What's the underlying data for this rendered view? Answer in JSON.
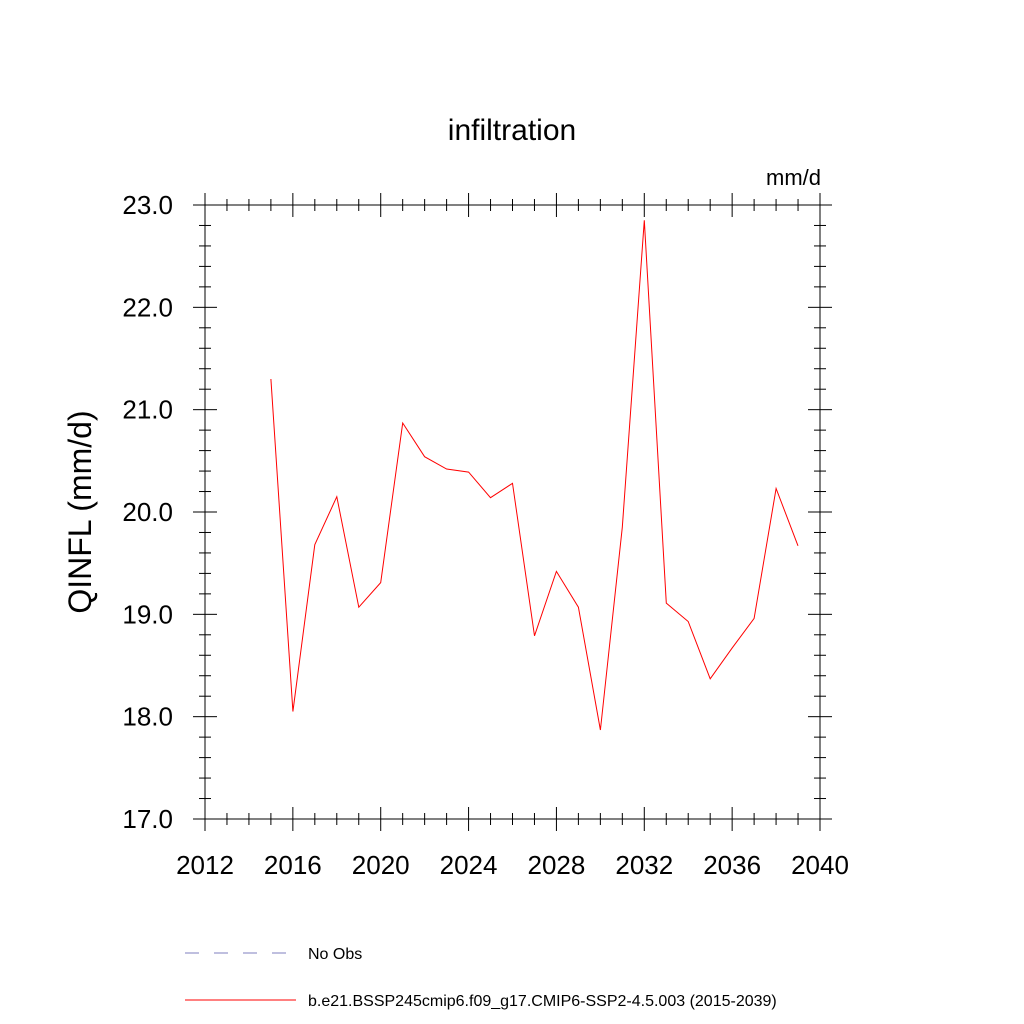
{
  "chart_data": {
    "type": "line",
    "title": "infiltration",
    "units_label": "mm/d",
    "ylabel": "QINFL  (mm/d)",
    "xlabel": "",
    "xlim": [
      2012,
      2040
    ],
    "ylim": [
      17.0,
      23.0
    ],
    "x_ticks": [
      "2012",
      "2016",
      "2020",
      "2024",
      "2028",
      "2032",
      "2036",
      "2040"
    ],
    "y_ticks": [
      "17.0",
      "18.0",
      "19.0",
      "20.0",
      "21.0",
      "22.0",
      "23.0"
    ],
    "x_tick_values": [
      2012,
      2016,
      2020,
      2024,
      2028,
      2032,
      2036,
      2040
    ],
    "y_tick_values": [
      17.0,
      18.0,
      19.0,
      20.0,
      21.0,
      22.0,
      23.0
    ],
    "grid": false,
    "legend_position": "bottom",
    "series": [
      {
        "name": "b.e21.BSSP245cmip6.f09_g17.CMIP6-SSP2-4.5.003 (2015-2039)",
        "color": "#ff0000",
        "style": "solid",
        "x": [
          2015,
          2016,
          2017,
          2018,
          2019,
          2020,
          2021,
          2022,
          2023,
          2024,
          2025,
          2026,
          2027,
          2028,
          2029,
          2030,
          2031,
          2032,
          2033,
          2034,
          2035,
          2036,
          2037,
          2038,
          2039
        ],
        "y": [
          21.3,
          18.05,
          19.68,
          20.15,
          19.07,
          19.31,
          20.87,
          20.54,
          20.42,
          20.39,
          20.14,
          20.28,
          18.79,
          19.42,
          19.07,
          17.87,
          19.85,
          22.85,
          19.11,
          18.93,
          18.37,
          18.67,
          18.96,
          20.23,
          19.67
        ]
      }
    ],
    "legend": [
      {
        "label": "No Obs",
        "color": "#7f7fbf",
        "style": "dashed"
      },
      {
        "label": "b.e21.BSSP245cmip6.f09_g17.CMIP6-SSP2-4.5.003 (2015-2039)",
        "color": "#ff0000",
        "style": "solid"
      }
    ]
  }
}
